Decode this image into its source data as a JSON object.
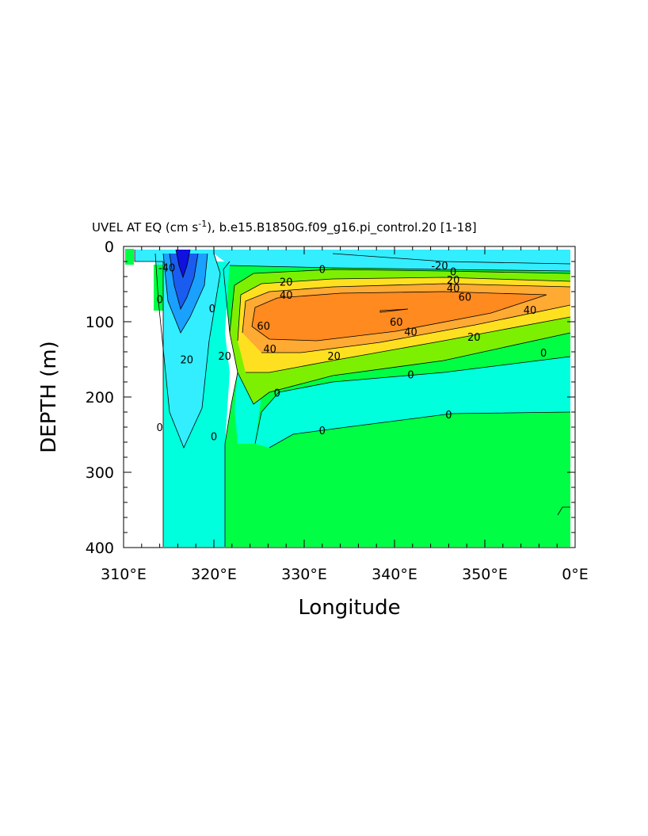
{
  "chart_data": {
    "type": "contour",
    "title": "UVEL AT EQ (cm s",
    "title_sup": "-1",
    "title_rest": "), b.e15.B1850G.f09_g16.pi_control.20 [1-18]",
    "xlabel": "Longitude",
    "ylabel": "DEPTH (m)",
    "x_range": [
      310,
      360
    ],
    "y_range": [
      0,
      400
    ],
    "y_inverted": true,
    "x_ticks": [
      "310°E",
      "320°E",
      "330°E",
      "340°E",
      "350°E",
      "0°E"
    ],
    "x_tick_values": [
      310,
      320,
      330,
      340,
      350,
      360
    ],
    "y_ticks": [
      "0",
      "100",
      "200",
      "300",
      "400"
    ],
    "y_tick_values": [
      0,
      100,
      200,
      300,
      400
    ],
    "contour_interval": 20,
    "contour_levels": [
      -60,
      -40,
      -20,
      0,
      20,
      40,
      60
    ],
    "fill_colors": {
      "below_-60": "#1010e0",
      "-60_-40": "#1a5cf0",
      "-40_-20": "#1aa0ff",
      "-20_0": "#33eeff",
      "0_20_cyan": "#00ffdd",
      "0_20": "#00ff44",
      "20_40": "#7cf000",
      "40_60": "#ffe020",
      "60_80": "#ffaa33",
      "above_80": "#ff8a20"
    },
    "contour_labels": [
      {
        "text": "-20",
        "x": 345.0,
        "y": 25
      },
      {
        "text": "0",
        "x": 332.0,
        "y": 30
      },
      {
        "text": "0",
        "x": 346.5,
        "y": 33
      },
      {
        "text": "20",
        "x": 328.0,
        "y": 47
      },
      {
        "text": "20",
        "x": 346.5,
        "y": 44
      },
      {
        "text": "40",
        "x": 328.0,
        "y": 64
      },
      {
        "text": "40",
        "x": 346.5,
        "y": 55
      },
      {
        "text": "60",
        "x": 347.8,
        "y": 67
      },
      {
        "text": "40",
        "x": 355.0,
        "y": 84
      },
      {
        "text": "60",
        "x": 325.5,
        "y": 105
      },
      {
        "text": "60",
        "x": 340.2,
        "y": 100
      },
      {
        "text": "40",
        "x": 341.8,
        "y": 113
      },
      {
        "text": "20",
        "x": 348.8,
        "y": 120
      },
      {
        "text": "40",
        "x": 326.2,
        "y": 136
      },
      {
        "text": "20",
        "x": 333.3,
        "y": 145
      },
      {
        "text": "0",
        "x": 356.5,
        "y": 141
      },
      {
        "text": "0",
        "x": 341.8,
        "y": 170
      },
      {
        "text": "0",
        "x": 327.0,
        "y": 194
      },
      {
        "text": "0",
        "x": 346.0,
        "y": 223
      },
      {
        "text": "0",
        "x": 332.0,
        "y": 244
      },
      {
        "text": "20",
        "x": 321.2,
        "y": 145
      },
      {
        "text": "20",
        "x": 317.0,
        "y": 150
      },
      {
        "text": "0",
        "x": 319.8,
        "y": 82
      },
      {
        "text": "0",
        "x": 314.0,
        "y": 70
      },
      {
        "text": "-40",
        "x": 314.8,
        "y": 28
      },
      {
        "text": "0",
        "x": 314.0,
        "y": 240
      },
      {
        "text": "0",
        "x": 320.0,
        "y": 252
      }
    ]
  }
}
